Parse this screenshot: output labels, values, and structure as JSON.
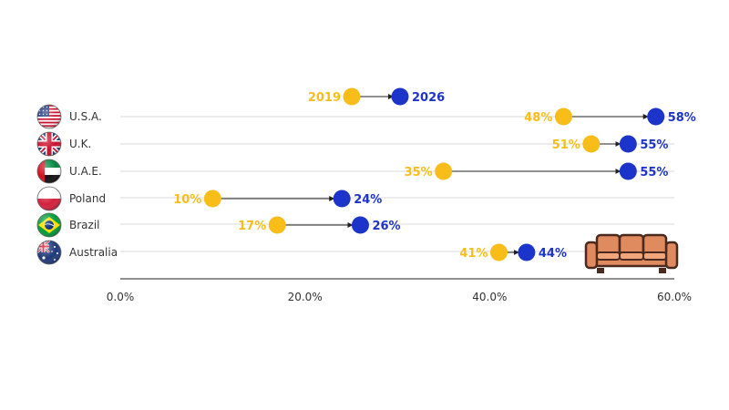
{
  "chart_data": {
    "type": "dumbbell",
    "xlim": [
      0,
      60
    ],
    "x_ticks": [
      "0.0%",
      "20.0%",
      "40.0%",
      "60.0%"
    ],
    "x_tick_values": [
      0,
      20,
      40,
      60
    ],
    "categories": [
      "U.S.A.",
      "U.K.",
      "U.A.E.",
      "Poland",
      "Brazil",
      "Australia"
    ],
    "series": [
      {
        "name": "2019",
        "color": "#f9bd1a",
        "values": [
          48,
          51,
          35,
          10,
          17,
          41
        ],
        "labels": [
          "48%",
          "51%",
          "35%",
          "10%",
          "17%",
          "41%"
        ]
      },
      {
        "name": "2026",
        "color": "#1c34c9",
        "values": [
          58,
          55,
          55,
          24,
          26,
          44
        ],
        "labels": [
          "58%",
          "55%",
          "55%",
          "24%",
          "26%",
          "44%"
        ]
      }
    ],
    "legend_placement": "top",
    "grid": "horizontal",
    "flag_icons": [
      "usa-flag-icon",
      "uk-flag-icon",
      "uae-flag-icon",
      "poland-flag-icon",
      "brazil-flag-icon",
      "australia-flag-icon"
    ],
    "decoration_icon": "sofa-icon"
  }
}
